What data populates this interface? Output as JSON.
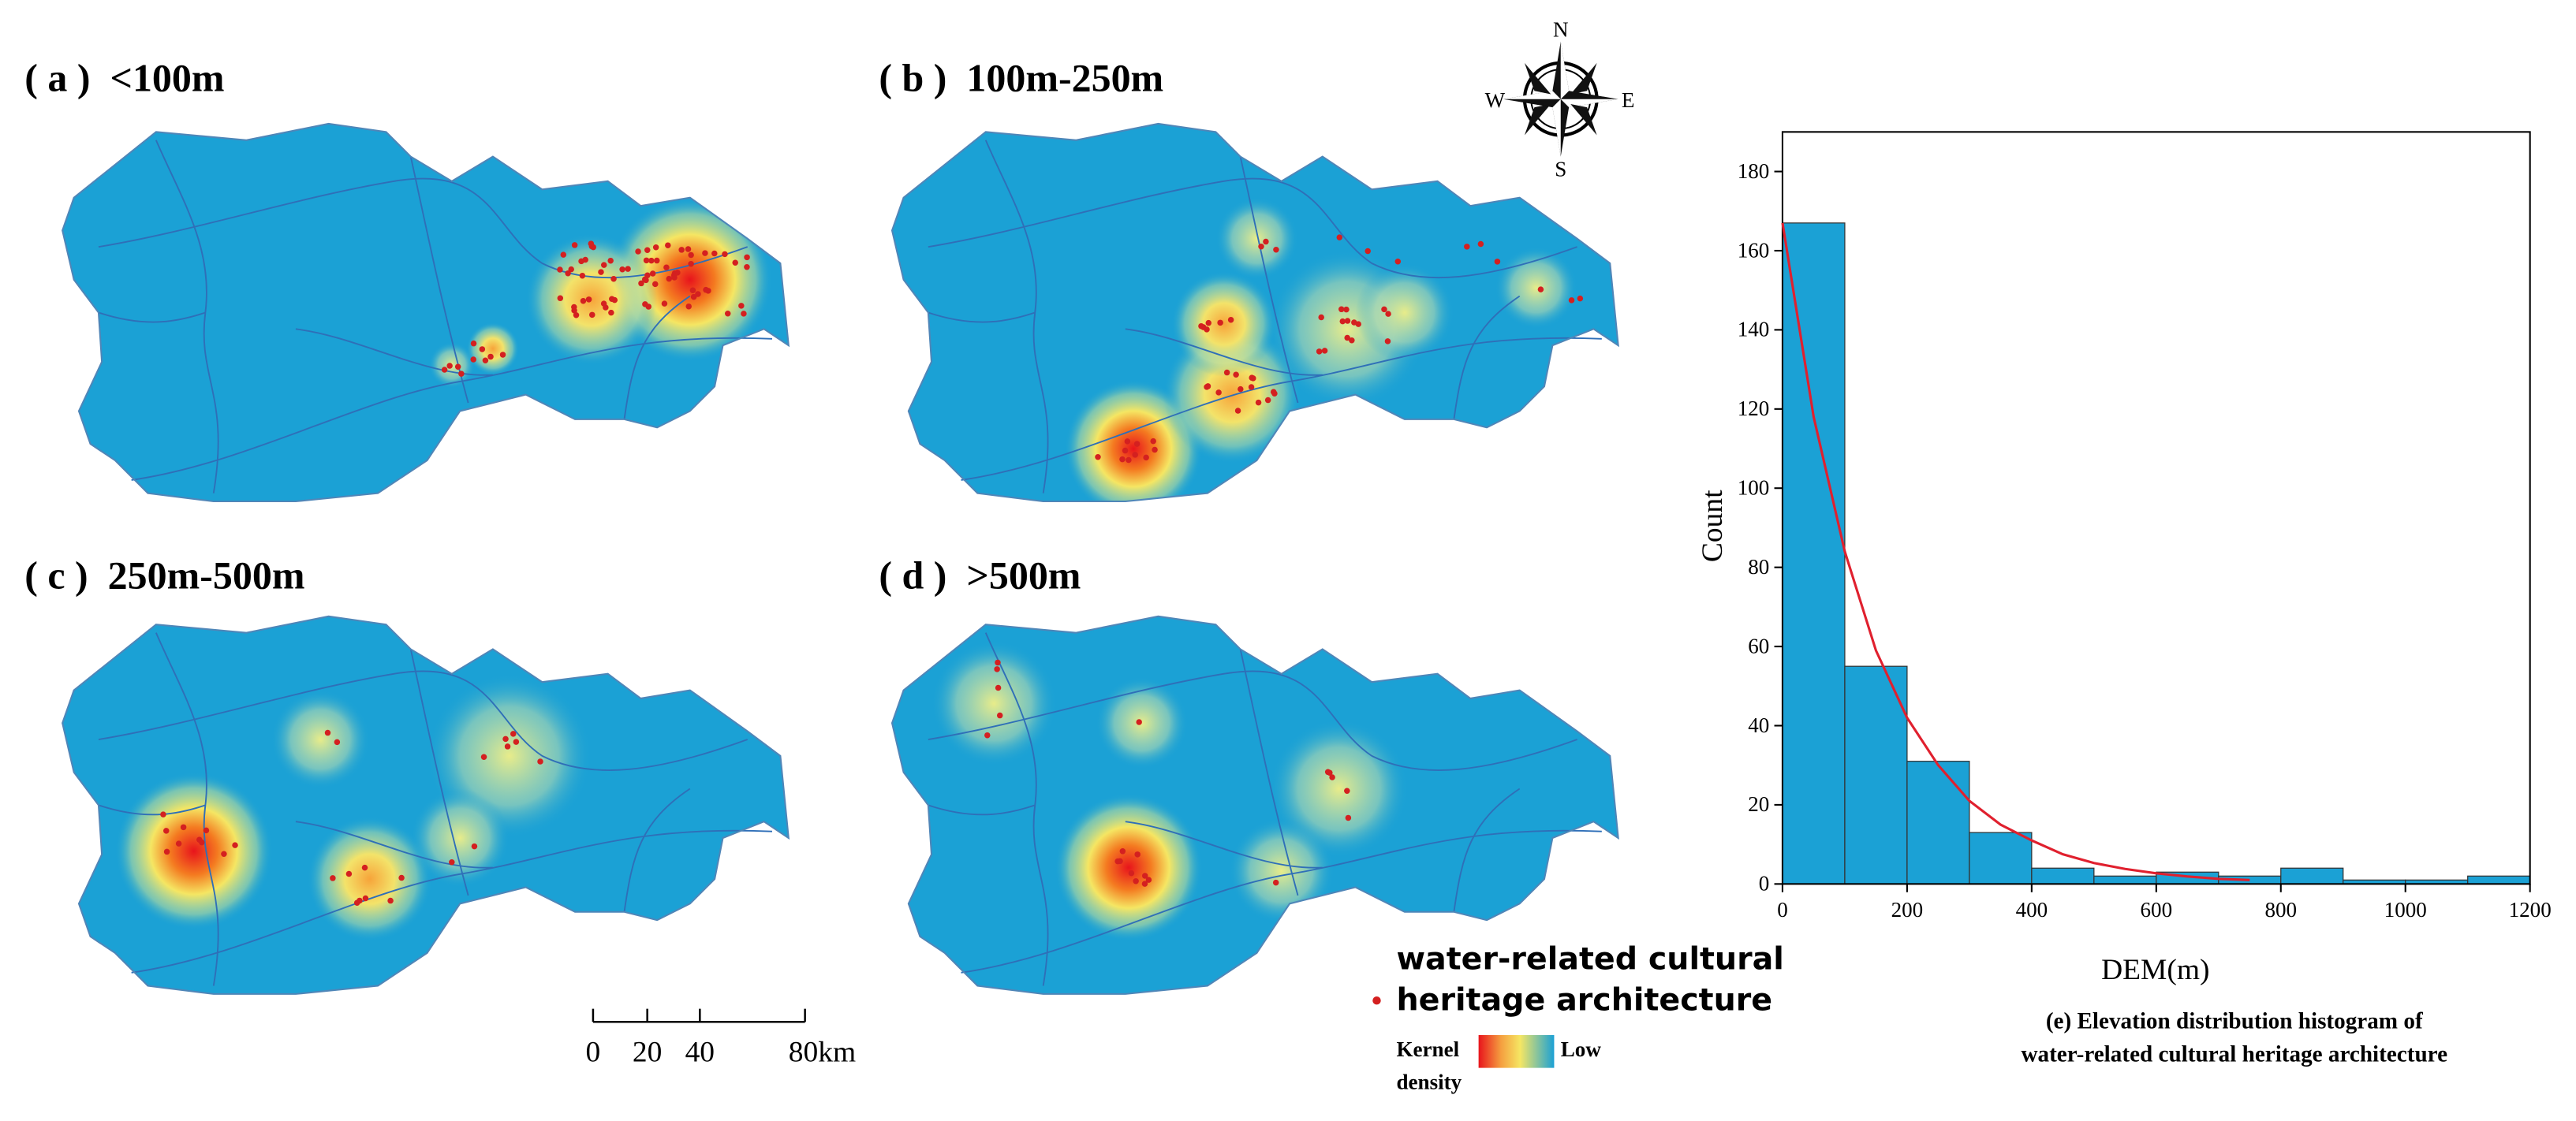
{
  "panels": [
    {
      "label": "( a )  <100m"
    },
    {
      "label": "( b )  100m-250m"
    },
    {
      "label": "( c )  250m-500m"
    },
    {
      "label": "( d )  >500m"
    }
  ],
  "compass": {
    "n": "N",
    "s": "S",
    "w": "W",
    "e": "E"
  },
  "scale_bar": {
    "ticks": [
      "0",
      "20",
      "40",
      "80km"
    ]
  },
  "legend": {
    "point_label_lines": [
      "water-related cultural",
      "heritage architecture"
    ],
    "kernel_label_lines": [
      "Kernel",
      "density"
    ],
    "low": "Low"
  },
  "chart_data": {
    "type": "histogram",
    "xlabel": "DEM(m)",
    "ylabel": "Count",
    "caption_lines": [
      "(e) Elevation distribution histogram of",
      "water-related cultural heritage architecture"
    ],
    "bins": [
      0,
      100,
      200,
      300,
      400,
      500,
      600,
      700,
      800,
      900,
      1000,
      1100,
      1200
    ],
    "values": [
      167,
      55,
      31,
      13,
      4,
      2,
      3,
      2,
      4,
      1,
      1,
      2
    ],
    "color": "#1ba1d5",
    "xlim": [
      0,
      1200
    ],
    "ylim": [
      0,
      190
    ],
    "xticks": [
      0,
      200,
      400,
      600,
      800,
      1000,
      1200
    ],
    "yticks": [
      0,
      20,
      40,
      60,
      80,
      100,
      120,
      140,
      160,
      180
    ],
    "fit": {
      "color": "#e0202e",
      "x": [
        0,
        50,
        100,
        150,
        200,
        250,
        300,
        350,
        400,
        450,
        500,
        550,
        600,
        650,
        700,
        750
      ],
      "values": [
        167,
        118,
        84,
        59,
        42,
        30,
        21,
        15,
        11,
        7.5,
        5.3,
        3.8,
        2.7,
        1.9,
        1.3,
        1.0
      ]
    }
  }
}
